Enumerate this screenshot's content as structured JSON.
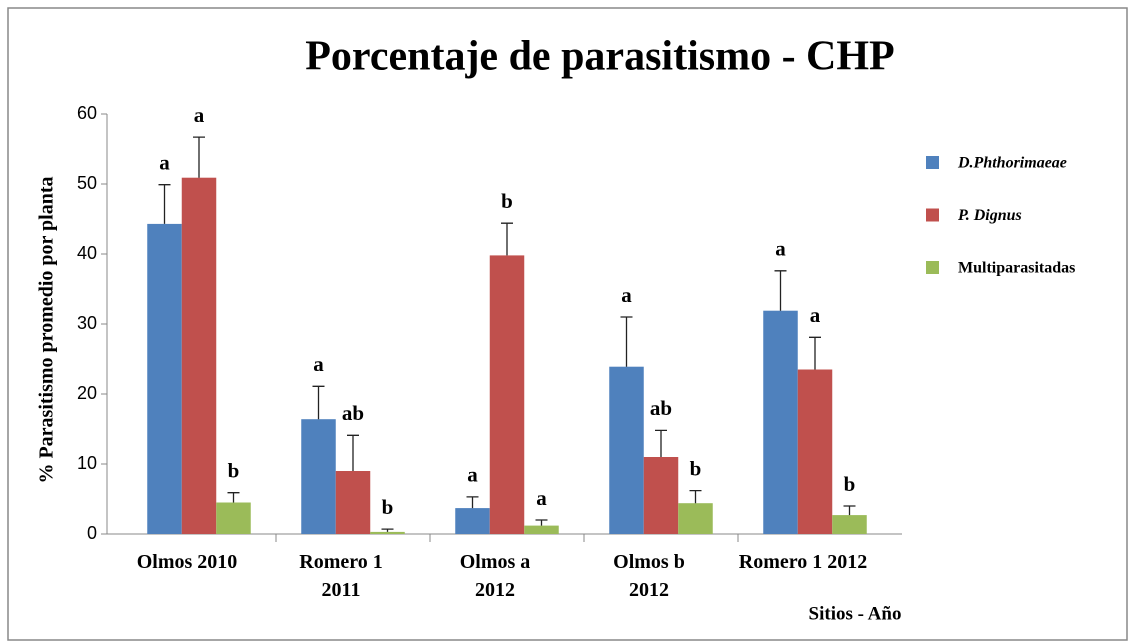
{
  "chart_data": {
    "type": "bar",
    "title": "Porcentaje de parasitismo - CHP",
    "y_label": "% Parasitismo promedio por planta",
    "x_label": "Sitios - Año",
    "categories": [
      "Olmos 2010",
      "Romero 1\n2011",
      "Olmos a\n2012",
      "Olmos b\n2012",
      "Romero 1 2012"
    ],
    "series": [
      {
        "name": "D.Phthorimaeae",
        "color": "#4f81bd",
        "values": [
          44.3,
          16.4,
          3.7,
          23.9,
          31.9
        ],
        "errors": [
          5.6,
          4.7,
          1.6,
          7.1,
          5.7
        ],
        "letters": [
          "a",
          "a",
          "a",
          "a",
          "a"
        ]
      },
      {
        "name": "P. Dignus",
        "color": "#c0504d",
        "values": [
          50.9,
          9.0,
          39.8,
          11.0,
          23.5
        ],
        "errors": [
          5.8,
          5.1,
          4.6,
          3.8,
          4.6
        ],
        "letters": [
          "a",
          "ab",
          "b",
          "ab",
          "a"
        ]
      },
      {
        "name": "Multiparasitadas",
        "color": "#9bbb59",
        "values": [
          4.5,
          0.3,
          1.2,
          4.4,
          2.7
        ],
        "errors": [
          1.4,
          0.4,
          0.8,
          1.8,
          1.3
        ],
        "letters": [
          "b",
          "b",
          "a",
          "b",
          "b"
        ]
      }
    ],
    "ylim": [
      0,
      60
    ],
    "yticks": [
      0,
      10,
      20,
      30,
      40,
      50,
      60
    ],
    "grid": false,
    "legend": "right"
  }
}
